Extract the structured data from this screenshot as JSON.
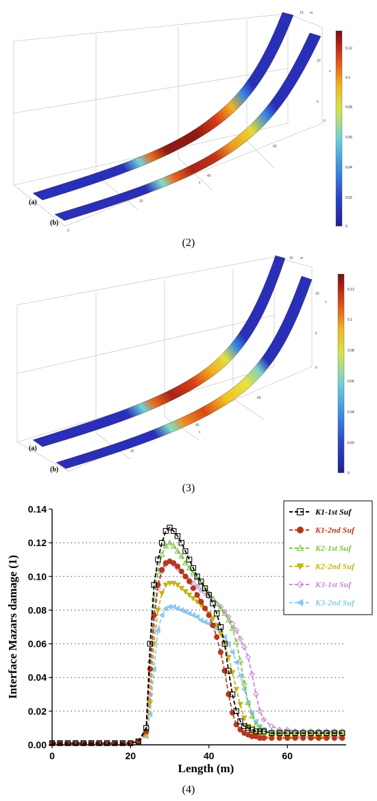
{
  "figure2": {
    "label": "(2)",
    "strip_a": "(a)",
    "strip_b": "(b)",
    "colorbar_ticks": [
      "0.12",
      "0.1",
      "0.08",
      "0.06",
      "0.04",
      "0.02",
      "0"
    ],
    "axis_ticks": [
      "15",
      "10",
      "5",
      "0",
      "60",
      "40",
      "20",
      "0"
    ],
    "axis_letters": [
      "m",
      "z",
      "x"
    ]
  },
  "figure3": {
    "label": "(3)",
    "strip_a": "(a)",
    "strip_b": "(b)",
    "colorbar_ticks": [
      "0.12",
      "0.1",
      "0.08",
      "0.06",
      "0.04",
      "0.02",
      "0"
    ],
    "axis_ticks": [
      "15",
      "10",
      "5",
      "0",
      "60",
      "40",
      "20"
    ],
    "axis_letters": [
      "m",
      "z",
      "x"
    ]
  },
  "figure4": {
    "label": "(4)"
  },
  "chart_data": {
    "type": "line",
    "xlabel": "Length (m)",
    "ylabel": "Interface Mazars damage  (1)",
    "xlim": [
      0,
      75
    ],
    "ylim": [
      0,
      0.14
    ],
    "xticks": [
      "0",
      "20",
      "40",
      "60"
    ],
    "yticks": [
      "0.00",
      "0.02",
      "0.04",
      "0.06",
      "0.08",
      "0.10",
      "0.12",
      "0.14"
    ],
    "grid": "horizontal dotted",
    "legend_position": "top-right",
    "x": [
      0,
      2,
      4,
      6,
      8,
      10,
      12,
      14,
      16,
      18,
      20,
      22,
      24,
      25,
      26,
      27,
      28,
      29,
      30,
      31,
      32,
      33,
      34,
      35,
      36,
      37,
      38,
      39,
      40,
      41,
      42,
      43,
      44,
      45,
      46,
      47,
      48,
      49,
      50,
      51,
      52,
      53,
      54,
      56,
      58,
      60,
      62,
      64,
      66,
      68,
      70,
      72,
      74
    ],
    "series": [
      {
        "name": "K1-1st Suf",
        "color": "#000000",
        "marker": "open-square",
        "values": [
          0.001,
          0.001,
          0.001,
          0.001,
          0.001,
          0.001,
          0.001,
          0.001,
          0.001,
          0.001,
          0.001,
          0.002,
          0.01,
          0.06,
          0.095,
          0.11,
          0.12,
          0.127,
          0.129,
          0.127,
          0.124,
          0.12,
          0.115,
          0.11,
          0.105,
          0.1,
          0.097,
          0.093,
          0.089,
          0.084,
          0.078,
          0.07,
          0.06,
          0.044,
          0.03,
          0.02,
          0.014,
          0.011,
          0.01,
          0.009,
          0.008,
          0.008,
          0.008,
          0.007,
          0.007,
          0.007,
          0.007,
          0.007,
          0.007,
          0.007,
          0.007,
          0.007,
          0.007
        ]
      },
      {
        "name": "K1-2nd Suf",
        "color": "#b5381e",
        "marker": "filled-circle",
        "values": [
          0.001,
          0.001,
          0.001,
          0.001,
          0.001,
          0.001,
          0.001,
          0.001,
          0.001,
          0.001,
          0.001,
          0.002,
          0.008,
          0.045,
          0.077,
          0.095,
          0.104,
          0.108,
          0.109,
          0.108,
          0.106,
          0.103,
          0.1,
          0.097,
          0.093,
          0.089,
          0.085,
          0.081,
          0.077,
          0.071,
          0.064,
          0.055,
          0.044,
          0.03,
          0.019,
          0.012,
          0.009,
          0.007,
          0.006,
          0.005,
          0.005,
          0.004,
          0.004,
          0.004,
          0.004,
          0.004,
          0.004,
          0.004,
          0.004,
          0.004,
          0.004,
          0.004,
          0.004
        ]
      },
      {
        "name": "K2-1st Suf",
        "color": "#7cc24a",
        "marker": "open-triangle-up",
        "values": [
          0.001,
          0.001,
          0.001,
          0.001,
          0.001,
          0.001,
          0.001,
          0.001,
          0.001,
          0.001,
          0.001,
          0.002,
          0.009,
          0.05,
          0.087,
          0.103,
          0.113,
          0.118,
          0.12,
          0.118,
          0.115,
          0.112,
          0.108,
          0.105,
          0.102,
          0.099,
          0.096,
          0.093,
          0.09,
          0.087,
          0.084,
          0.081,
          0.078,
          0.074,
          0.069,
          0.061,
          0.05,
          0.037,
          0.025,
          0.017,
          0.012,
          0.01,
          0.009,
          0.008,
          0.008,
          0.008,
          0.008,
          0.008,
          0.008,
          0.008,
          0.008,
          0.008,
          0.008
        ]
      },
      {
        "name": "K2-2nd Suf",
        "color": "#c4b21a",
        "marker": "filled-triangle-down",
        "values": [
          0.001,
          0.001,
          0.001,
          0.001,
          0.001,
          0.001,
          0.001,
          0.001,
          0.001,
          0.001,
          0.001,
          0.002,
          0.006,
          0.025,
          0.06,
          0.08,
          0.09,
          0.095,
          0.096,
          0.096,
          0.095,
          0.093,
          0.091,
          0.089,
          0.087,
          0.085,
          0.083,
          0.081,
          0.078,
          0.075,
          0.071,
          0.066,
          0.06,
          0.052,
          0.043,
          0.033,
          0.024,
          0.016,
          0.011,
          0.008,
          0.006,
          0.005,
          0.005,
          0.005,
          0.005,
          0.005,
          0.005,
          0.005,
          0.005,
          0.005,
          0.005,
          0.005,
          0.005
        ]
      },
      {
        "name": "K3-1st Suf",
        "color": "#c987d8",
        "marker": "open-diamond",
        "values": [
          0.001,
          0.001,
          0.001,
          0.001,
          0.001,
          0.001,
          0.001,
          0.001,
          0.001,
          0.001,
          0.001,
          0.002,
          0.007,
          0.03,
          0.07,
          0.093,
          0.103,
          0.107,
          0.109,
          0.107,
          0.105,
          0.103,
          0.1,
          0.098,
          0.096,
          0.094,
          0.092,
          0.09,
          0.088,
          0.086,
          0.084,
          0.082,
          0.079,
          0.076,
          0.072,
          0.068,
          0.063,
          0.058,
          0.052,
          0.042,
          0.03,
          0.02,
          0.015,
          0.011,
          0.009,
          0.009,
          0.008,
          0.008,
          0.008,
          0.008,
          0.008,
          0.008,
          0.008
        ]
      },
      {
        "name": "K3-2nd Suf",
        "color": "#8cc8ec",
        "marker": "filled-triangle-left",
        "values": [
          0.001,
          0.001,
          0.001,
          0.001,
          0.001,
          0.001,
          0.001,
          0.001,
          0.001,
          0.001,
          0.001,
          0.002,
          0.005,
          0.018,
          0.045,
          0.068,
          0.077,
          0.081,
          0.082,
          0.082,
          0.081,
          0.08,
          0.079,
          0.078,
          0.077,
          0.076,
          0.074,
          0.073,
          0.072,
          0.071,
          0.069,
          0.067,
          0.064,
          0.06,
          0.055,
          0.049,
          0.041,
          0.033,
          0.025,
          0.019,
          0.014,
          0.011,
          0.009,
          0.007,
          0.006,
          0.005,
          0.005,
          0.005,
          0.005,
          0.005,
          0.005,
          0.005,
          0.005
        ]
      }
    ]
  }
}
